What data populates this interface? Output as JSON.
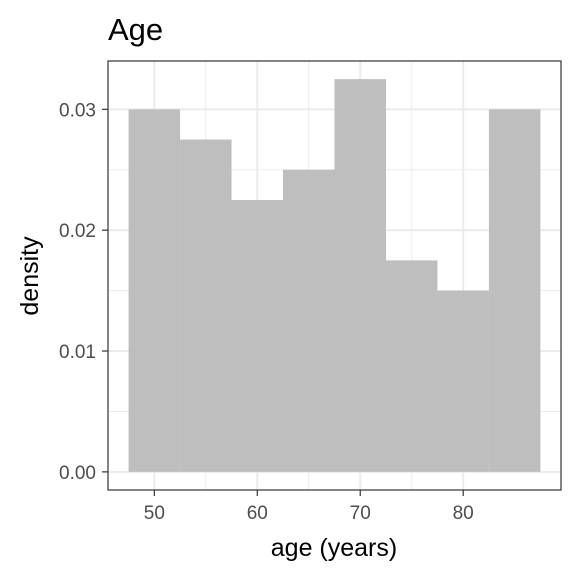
{
  "chart_data": {
    "type": "bar",
    "title": "Age",
    "xlabel": "age (years)",
    "ylabel": "density",
    "xlim": [
      45.5,
      89.5
    ],
    "ylim": [
      -0.0015,
      0.034
    ],
    "x_ticks": [
      50,
      60,
      70,
      80
    ],
    "x_tick_labels": [
      "50",
      "60",
      "70",
      "80"
    ],
    "y_ticks": [
      0,
      0.01,
      0.02,
      0.03
    ],
    "y_tick_labels": [
      "0.00",
      "0.01",
      "0.02",
      "0.03"
    ],
    "grid": true,
    "bin_width": 5,
    "bins": [
      {
        "start": 47.5,
        "end": 52.5,
        "value": 0.03
      },
      {
        "start": 52.5,
        "end": 57.5,
        "value": 0.0275
      },
      {
        "start": 57.5,
        "end": 62.5,
        "value": 0.0225
      },
      {
        "start": 62.5,
        "end": 67.5,
        "value": 0.025
      },
      {
        "start": 67.5,
        "end": 72.5,
        "value": 0.0325
      },
      {
        "start": 72.5,
        "end": 77.5,
        "value": 0.0175
      },
      {
        "start": 77.5,
        "end": 82.5,
        "value": 0.015
      },
      {
        "start": 82.5,
        "end": 87.5,
        "value": 0.03
      }
    ],
    "colors": {
      "bar_fill": "#bebebe",
      "grid": "#ebebeb",
      "panel_border": "#333333",
      "tick_label": "#4d4d4d"
    }
  }
}
